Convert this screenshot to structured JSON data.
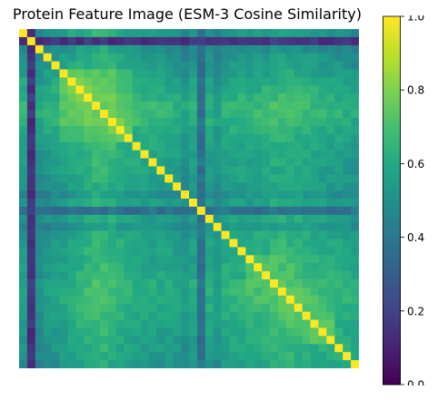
{
  "chart_data": {
    "type": "heatmap",
    "title": "Protein Feature Image (ESM-3 Cosine Similarity)",
    "n": 42,
    "colormap": "viridis",
    "vmin": 0.0,
    "vmax": 1.0,
    "colorbar": {
      "ticks": [
        0.0,
        0.2,
        0.4,
        0.6,
        0.8,
        1.0
      ],
      "tick_labels": [
        "0.0",
        "0.2",
        "0.4",
        "0.6",
        "0.8",
        "1.0"
      ]
    },
    "axes_visible": false,
    "grid": false,
    "diagonal_value": 1.0,
    "base_similarity": 0.55,
    "row_profile": [
      0.55,
      0.12,
      0.45,
      0.52,
      0.56,
      0.6,
      0.65,
      0.7,
      0.74,
      0.78,
      0.78,
      0.74,
      0.68,
      0.64,
      0.62,
      0.6,
      0.58,
      0.56,
      0.55,
      0.52,
      0.45,
      0.55,
      0.35,
      0.55,
      0.45,
      0.58,
      0.6,
      0.62,
      0.6,
      0.64,
      0.66,
      0.7,
      0.72,
      0.72,
      0.7,
      0.68,
      0.66,
      0.64,
      0.62,
      0.62,
      0.6,
      0.56
    ],
    "blocks": [
      {
        "rows": [
          5,
          13
        ],
        "value": 0.8
      },
      {
        "rows": [
          28,
          38
        ],
        "value": 0.75
      }
    ],
    "low_rows": [
      {
        "index": 1,
        "value": 0.15
      },
      {
        "index": 22,
        "value": 0.38
      }
    ]
  }
}
